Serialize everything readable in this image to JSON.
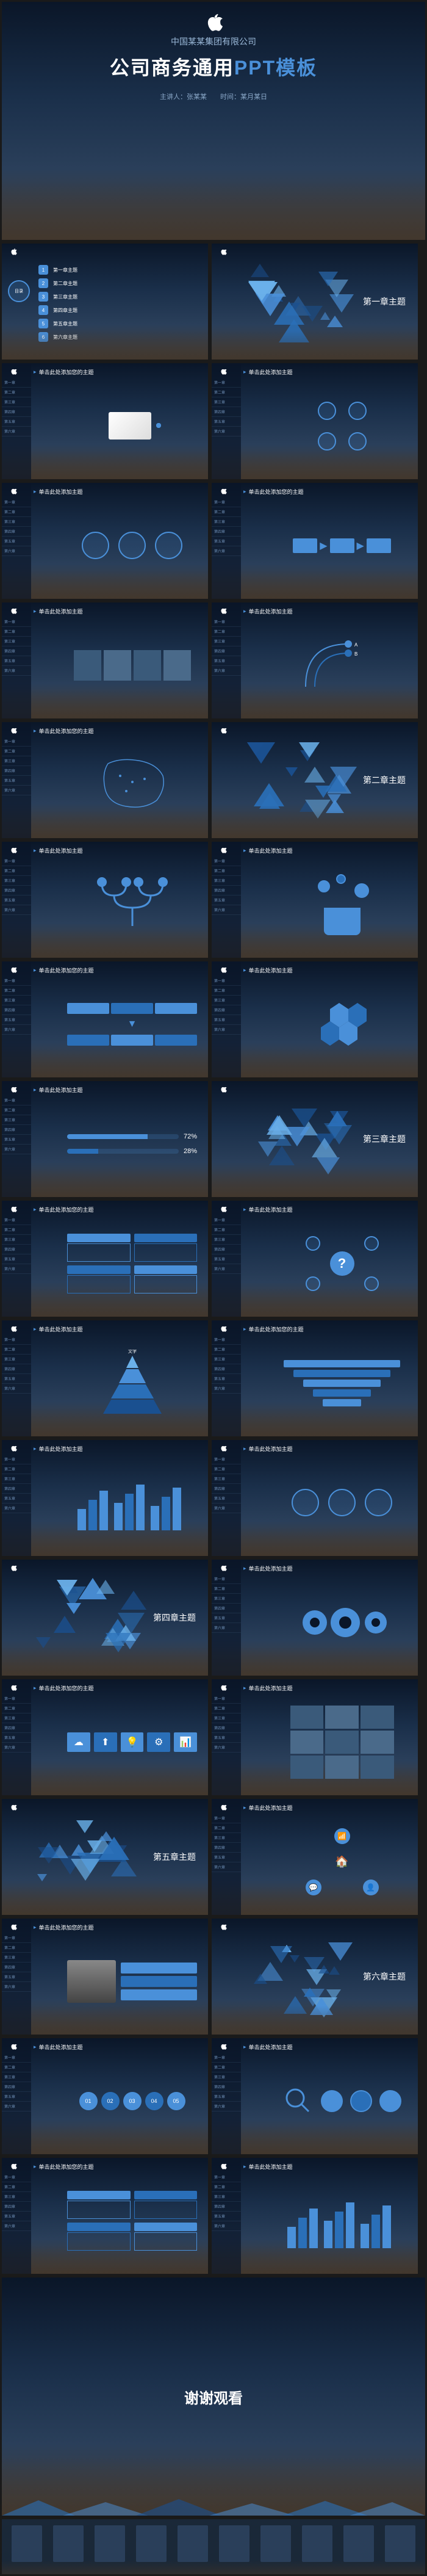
{
  "hero": {
    "company": "中国某某集团有限公司",
    "title_pre": "公司商务通用",
    "title_hl": "PPT模板",
    "presenter": "主讲人：张某某",
    "time": "时间：某月某日"
  },
  "toc": {
    "label": "目录",
    "items": [
      {
        "n": "1",
        "t": "第一章主题"
      },
      {
        "n": "2",
        "t": "第二章主题"
      },
      {
        "n": "3",
        "t": "第三章主题"
      },
      {
        "n": "4",
        "t": "第四章主题"
      },
      {
        "n": "5",
        "t": "第五章主题"
      },
      {
        "n": "6",
        "t": "第六章主题"
      }
    ]
  },
  "sections": [
    {
      "title": "第一章主题"
    },
    {
      "title": "第二章主题"
    },
    {
      "title": "第三章主题"
    },
    {
      "title": "第四章主题"
    },
    {
      "title": "第五章主题"
    },
    {
      "title": "第六章主题"
    }
  ],
  "slide_title": "单击此处添加主题",
  "slide_title2": "单击此处添加您的主题",
  "sidebar_items": [
    "第一章",
    "第二章",
    "第三章",
    "第四章",
    "第五章",
    "第六章"
  ],
  "thanks": "谢谢观看",
  "colors": {
    "accent": "#4a90d9",
    "accent2": "#2a6fb8",
    "accent3": "#1a5090",
    "bg_dark": "#0a1628",
    "text_muted": "#8aa8c8"
  },
  "chart_styles": {
    "triangle_colors": [
      "#4a90d9",
      "#2a6fb8",
      "#1a5090",
      "#6ab0e9"
    ],
    "bar_color": "#4a90d9",
    "circle_border": "#4a90d9",
    "gear_color": "#4a90d9"
  },
  "percentages": {
    "p1": "72%",
    "p2": "28%"
  },
  "step_numbers": [
    "01",
    "02",
    "03",
    "04",
    "05"
  ]
}
